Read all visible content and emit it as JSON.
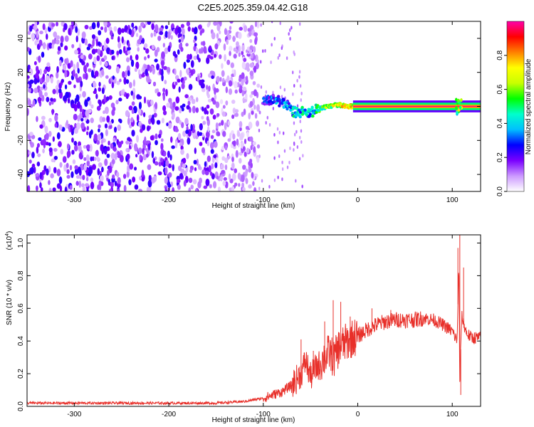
{
  "title": "C2E5.2025.359.04.42.G18",
  "chart_data": [
    {
      "type": "heatmap",
      "name": "spectrogram",
      "xlabel": "Height of straight line (km)",
      "ylabel": "Frequency (Hz)",
      "xlim": [
        -350,
        130
      ],
      "ylim": [
        -50,
        50
      ],
      "xticks": [
        -300,
        -200,
        -100,
        0,
        100
      ],
      "xtick_labels": [
        "-300",
        "-200",
        "-100",
        "0",
        "100"
      ],
      "yticks": [
        -40,
        -20,
        0,
        20,
        40
      ],
      "ytick_labels": [
        "-40",
        "-20",
        "0",
        "20",
        "40"
      ],
      "colorbar": {
        "label": "Normalized spectral amplitude",
        "range": [
          0,
          1
        ],
        "ticks": [
          0.0,
          0.2,
          0.4,
          0.6,
          0.8
        ],
        "tick_labels": [
          "0.0",
          "0.2",
          "0.4",
          "0.6",
          "0.8"
        ],
        "colors": [
          "#ffffff",
          "#cc99ff",
          "#7a00ff",
          "#0000ff",
          "#00bfff",
          "#00ffcc",
          "#00ff00",
          "#c8ff00",
          "#ffff00",
          "#ff8000",
          "#ff0000",
          "#ff00aa"
        ]
      },
      "noise_region": {
        "x_range": [
          -350,
          -105
        ],
        "y_range": [
          -50,
          50
        ],
        "amplitude": [
          0.05,
          0.25
        ]
      },
      "tracked_signal": [
        {
          "x": -100,
          "y": 3,
          "amp": 0.35
        },
        {
          "x": -90,
          "y": 4,
          "amp": 0.4
        },
        {
          "x": -80,
          "y": 3,
          "amp": 0.45
        },
        {
          "x": -75,
          "y": 0,
          "amp": 0.5
        },
        {
          "x": -70,
          "y": -2,
          "amp": 0.5
        },
        {
          "x": -65,
          "y": -4,
          "amp": 0.55
        },
        {
          "x": -60,
          "y": -3,
          "amp": 0.5
        },
        {
          "x": -55,
          "y": -5,
          "amp": 0.55
        },
        {
          "x": -50,
          "y": -4,
          "amp": 0.5
        },
        {
          "x": -45,
          "y": -2,
          "amp": 0.6
        },
        {
          "x": -40,
          "y": -1,
          "amp": 0.65
        },
        {
          "x": -30,
          "y": 0,
          "amp": 0.75
        },
        {
          "x": -20,
          "y": 1,
          "amp": 0.8
        },
        {
          "x": -10,
          "y": 0,
          "amp": 0.85
        },
        {
          "x": 0,
          "y": 0,
          "amp": 0.9
        },
        {
          "x": 20,
          "y": 0,
          "amp": 0.95
        },
        {
          "x": 50,
          "y": 0,
          "amp": 0.95
        },
        {
          "x": 80,
          "y": 0,
          "amp": 0.95
        },
        {
          "x": 105,
          "y": 0,
          "amp": 0.9
        },
        {
          "x": 110,
          "y": 0,
          "amp": 0.95
        },
        {
          "x": 130,
          "y": 0,
          "amp": 0.95
        }
      ]
    },
    {
      "type": "line",
      "name": "snr",
      "xlabel": "Height of straight line (km)",
      "ylabel": "SNR (10 * v/v)",
      "y_scale_label": "(x10",
      "y_scale_exponent": "4",
      "y_scale_close": ")",
      "xlim": [
        -350,
        130
      ],
      "ylim": [
        0,
        1.05
      ],
      "xticks": [
        -300,
        -200,
        -100,
        0,
        100
      ],
      "xtick_labels": [
        "-300",
        "-200",
        "-100",
        "0",
        "100"
      ],
      "yticks": [
        0.0,
        0.2,
        0.4,
        0.6,
        0.8,
        1.0
      ],
      "ytick_labels": [
        "0.0",
        "0.2",
        "0.4",
        "0.6",
        "0.8",
        "1.0"
      ],
      "color": "#e8302a",
      "series": [
        {
          "name": "SNR",
          "x": [
            -350,
            -300,
            -250,
            -200,
            -150,
            -120,
            -100,
            -90,
            -80,
            -70,
            -60,
            -55,
            -50,
            -45,
            -40,
            -35,
            -30,
            -25,
            -20,
            -15,
            -10,
            -5,
            0,
            10,
            20,
            30,
            40,
            50,
            60,
            70,
            80,
            90,
            100,
            105,
            107,
            108,
            110,
            115,
            120,
            130
          ],
          "y": [
            0.02,
            0.02,
            0.02,
            0.02,
            0.02,
            0.03,
            0.05,
            0.07,
            0.09,
            0.13,
            0.2,
            0.28,
            0.18,
            0.23,
            0.26,
            0.3,
            0.33,
            0.29,
            0.36,
            0.38,
            0.4,
            0.42,
            0.43,
            0.47,
            0.5,
            0.52,
            0.53,
            0.53,
            0.53,
            0.54,
            0.53,
            0.5,
            0.46,
            0.4,
            0.85,
            0.15,
            0.55,
            0.45,
            0.42,
            0.42
          ]
        }
      ],
      "spikes": [
        {
          "x": -60,
          "y": 0.41
        },
        {
          "x": -47,
          "y": 0.34
        },
        {
          "x": -35,
          "y": 0.52
        },
        {
          "x": -26,
          "y": 0.65
        },
        {
          "x": -18,
          "y": 0.64
        },
        {
          "x": -8,
          "y": 0.55
        },
        {
          "x": 15,
          "y": 0.6
        },
        {
          "x": 35,
          "y": 0.59
        },
        {
          "x": 106,
          "y": 0.97
        },
        {
          "x": 108,
          "y": 1.05
        },
        {
          "x": 109,
          "y": 0.07
        },
        {
          "x": 112,
          "y": 0.85
        }
      ]
    }
  ]
}
